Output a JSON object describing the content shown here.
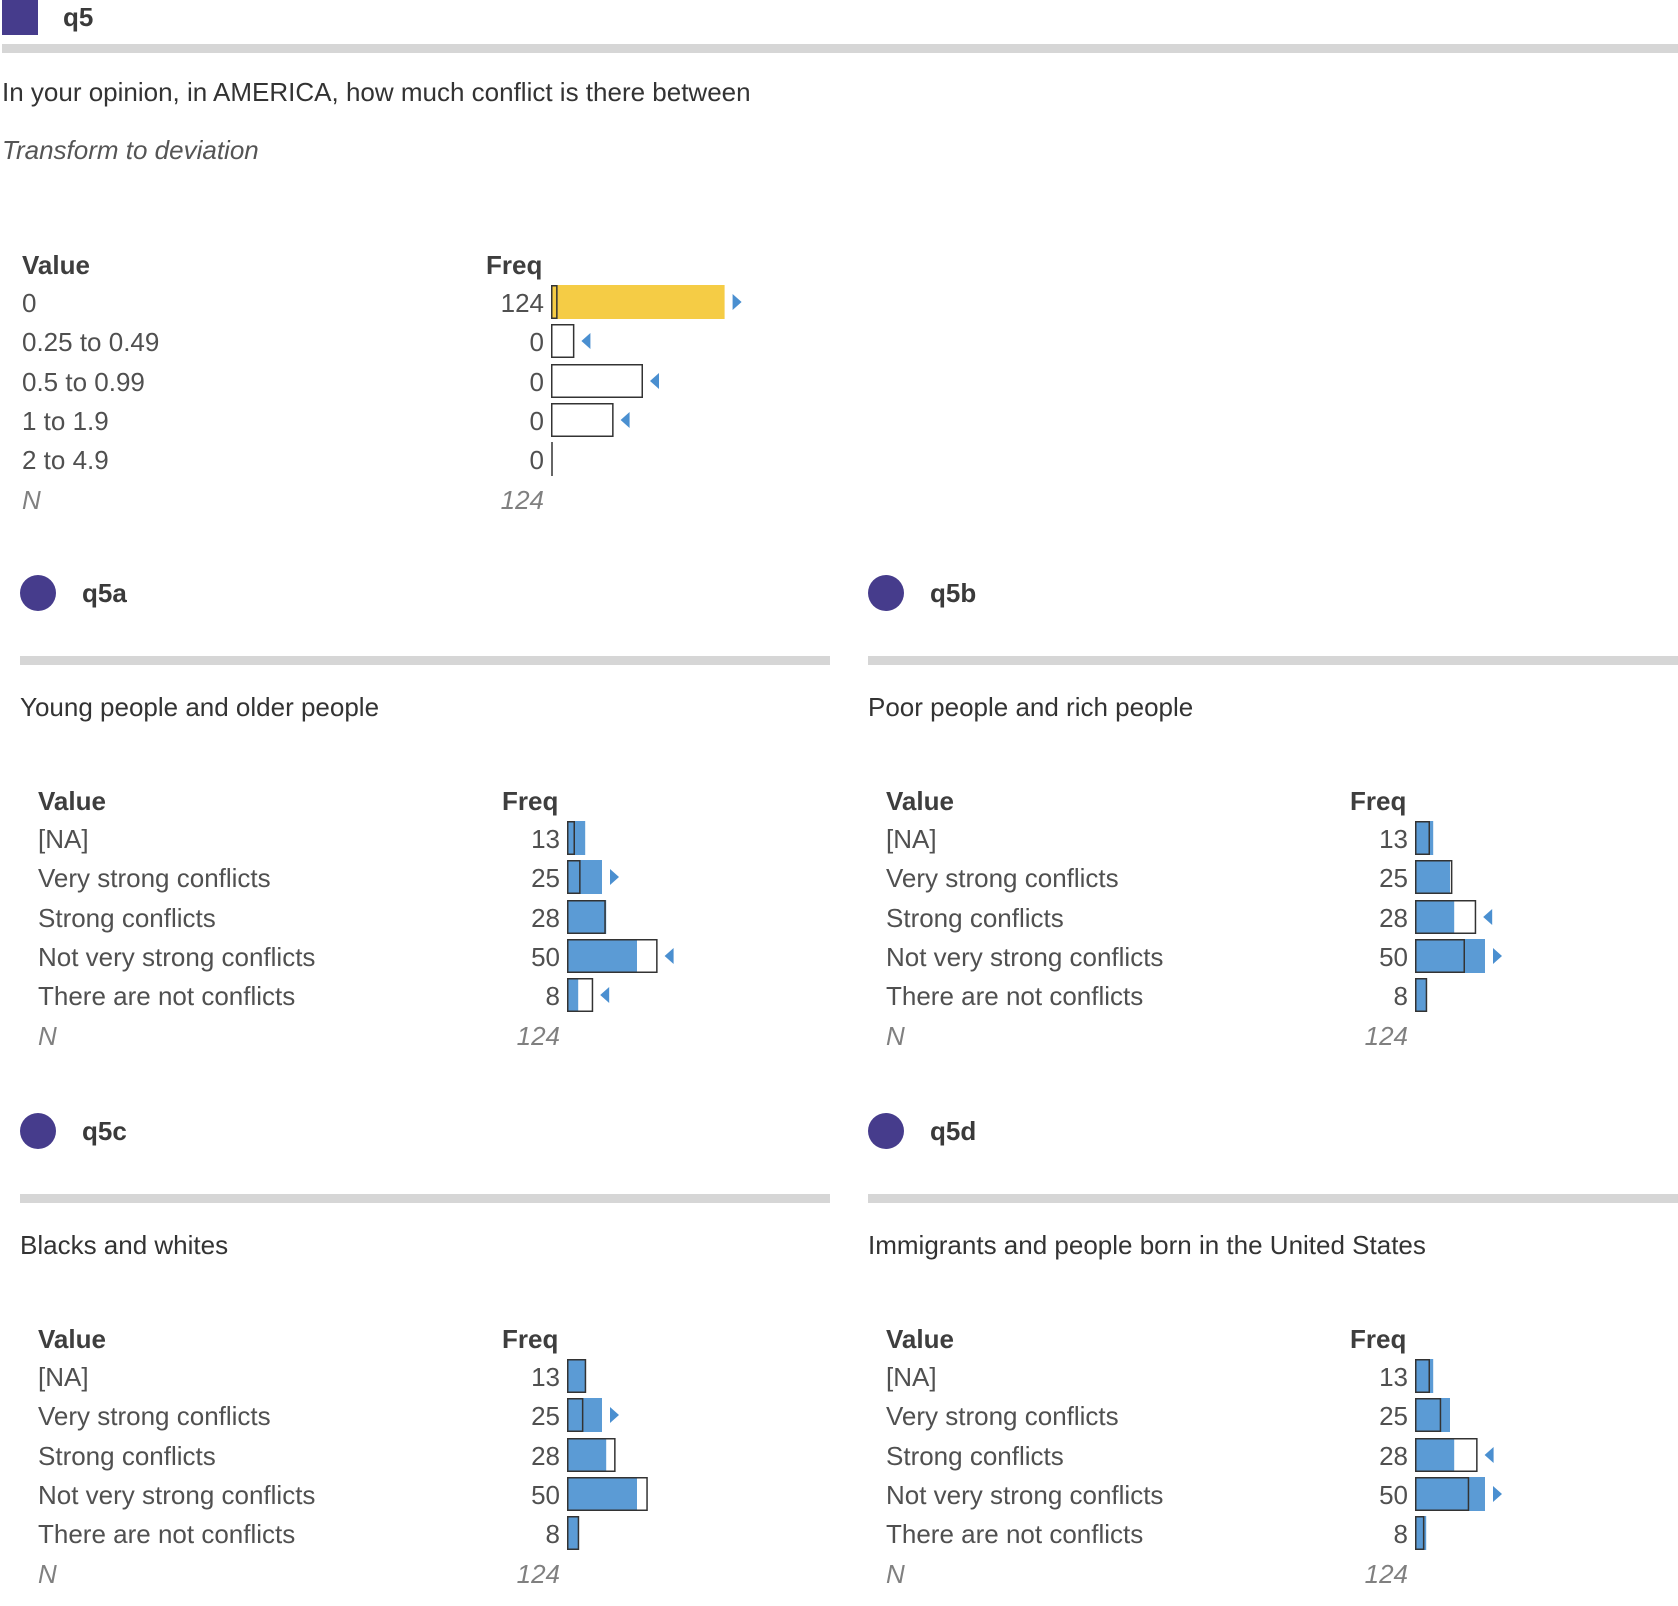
{
  "colors": {
    "marker": "#463c8c",
    "bar_fill_main": "#f5cc45",
    "bar_fill": "#5b9bd5",
    "outline": "#333333",
    "arrow": "#4a8fd0",
    "rule": "#d6d6d6"
  },
  "headers": {
    "value": "Value",
    "freq": "Freq"
  },
  "main": {
    "name": "q5",
    "label": "In your opinion, in AMERICA, how much conflict is there between",
    "transform": "Transform to deviation",
    "rows": [
      {
        "value": "0",
        "freq": "124",
        "fill": 124,
        "ref": 4
      },
      {
        "value": "0.25 to 0.49",
        "freq": "0",
        "fill": 0,
        "ref": 16
      },
      {
        "value": "0.5 to 0.99",
        "freq": "0",
        "fill": 0,
        "ref": 65
      },
      {
        "value": "1 to 1.9",
        "freq": "0",
        "fill": 0,
        "ref": 44
      },
      {
        "value": "2 to 4.9",
        "freq": "0",
        "fill": 0,
        "ref": 0
      }
    ],
    "n_label": "N",
    "n_value": "124"
  },
  "items": [
    {
      "name": "q5a",
      "label": "Young people and older people",
      "rows": [
        {
          "value": "[NA]",
          "freq": "13",
          "fill": 13,
          "ref": 5
        },
        {
          "value": "Very strong conflicts",
          "freq": "25",
          "fill": 25,
          "ref": 9
        },
        {
          "value": "Strong conflicts",
          "freq": "28",
          "fill": 28,
          "ref": 27
        },
        {
          "value": "Not very strong conflicts",
          "freq": "50",
          "fill": 50,
          "ref": 64
        },
        {
          "value": "There are not conflicts",
          "freq": "8",
          "fill": 8,
          "ref": 18
        }
      ],
      "n_label": "N",
      "n_value": "124"
    },
    {
      "name": "q5b",
      "label": "Poor people and rich people",
      "rows": [
        {
          "value": "[NA]",
          "freq": "13",
          "fill": 13,
          "ref": 10
        },
        {
          "value": "Very strong conflicts",
          "freq": "25",
          "fill": 25,
          "ref": 26
        },
        {
          "value": "Strong conflicts",
          "freq": "28",
          "fill": 28,
          "ref": 43
        },
        {
          "value": "Not very strong conflicts",
          "freq": "50",
          "fill": 50,
          "ref": 35
        },
        {
          "value": "There are not conflicts",
          "freq": "8",
          "fill": 8,
          "ref": 8
        }
      ],
      "n_label": "N",
      "n_value": "124"
    },
    {
      "name": "q5c",
      "label": "Blacks and whites",
      "rows": [
        {
          "value": "[NA]",
          "freq": "13",
          "fill": 13,
          "ref": 13
        },
        {
          "value": "Very strong conflicts",
          "freq": "25",
          "fill": 25,
          "ref": 11
        },
        {
          "value": "Strong conflicts",
          "freq": "28",
          "fill": 28,
          "ref": 34
        },
        {
          "value": "Not very strong conflicts",
          "freq": "50",
          "fill": 50,
          "ref": 57
        },
        {
          "value": "There are not conflicts",
          "freq": "8",
          "fill": 8,
          "ref": 8
        }
      ],
      "n_label": "N",
      "n_value": "124"
    },
    {
      "name": "q5d",
      "label": "Immigrants and people born in the United States",
      "rows": [
        {
          "value": "[NA]",
          "freq": "13",
          "fill": 13,
          "ref": 10
        },
        {
          "value": "Very strong conflicts",
          "freq": "25",
          "fill": 25,
          "ref": 18
        },
        {
          "value": "Strong conflicts",
          "freq": "28",
          "fill": 28,
          "ref": 44
        },
        {
          "value": "Not very strong conflicts",
          "freq": "50",
          "fill": 50,
          "ref": 38
        },
        {
          "value": "There are not conflicts",
          "freq": "8",
          "fill": 8,
          "ref": 6
        }
      ],
      "n_label": "N",
      "n_value": "124"
    }
  ]
}
